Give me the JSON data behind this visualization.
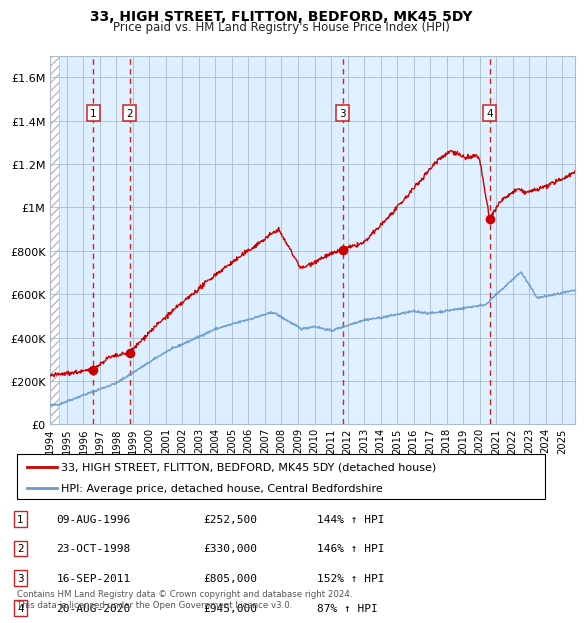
{
  "title": "33, HIGH STREET, FLITTON, BEDFORD, MK45 5DY",
  "subtitle": "Price paid vs. HM Land Registry's House Price Index (HPI)",
  "footer": "Contains HM Land Registry data © Crown copyright and database right 2024.\nThis data is licensed under the Open Government Licence v3.0.",
  "legend_line1": "33, HIGH STREET, FLITTON, BEDFORD, MK45 5DY (detached house)",
  "legend_line2": "HPI: Average price, detached house, Central Bedfordshire",
  "sales": [
    {
      "num": 1,
      "date_label": "09-AUG-1996",
      "price_label": "£252,500",
      "hpi_label": "144% ↑ HPI",
      "year": 1996.6,
      "price": 252500
    },
    {
      "num": 2,
      "date_label": "23-OCT-1998",
      "price_label": "£330,000",
      "hpi_label": "146% ↑ HPI",
      "year": 1998.8,
      "price": 330000
    },
    {
      "num": 3,
      "date_label": "16-SEP-2011",
      "price_label": "£805,000",
      "hpi_label": "152% ↑ HPI",
      "year": 2011.7,
      "price": 805000
    },
    {
      "num": 4,
      "date_label": "20-AUG-2020",
      "price_label": "£945,000",
      "hpi_label": "87% ↑ HPI",
      "year": 2020.6,
      "price": 945000
    }
  ],
  "red_line_color": "#cc0000",
  "blue_line_color": "#6699cc",
  "bg_color": "#ddeeff",
  "grid_color": "#aabbcc",
  "sale_marker_color": "#cc0000",
  "dashed_line_color": "#cc0000",
  "box_color": "#cc2222",
  "ylim": [
    0,
    1700000
  ],
  "xlim_start": 1994.0,
  "xlim_end": 2025.8,
  "yticks": [
    0,
    200000,
    400000,
    600000,
    800000,
    1000000,
    1200000,
    1400000,
    1600000
  ],
  "ytick_labels": [
    "£0",
    "£200K",
    "£400K",
    "£600K",
    "£800K",
    "£1M",
    "£1.2M",
    "£1.4M",
    "£1.6M"
  ],
  "xticks": [
    1994,
    1995,
    1996,
    1997,
    1998,
    1999,
    2000,
    2001,
    2002,
    2003,
    2004,
    2005,
    2006,
    2007,
    2008,
    2009,
    2010,
    2011,
    2012,
    2013,
    2014,
    2015,
    2016,
    2017,
    2018,
    2019,
    2020,
    2021,
    2022,
    2023,
    2024,
    2025
  ]
}
